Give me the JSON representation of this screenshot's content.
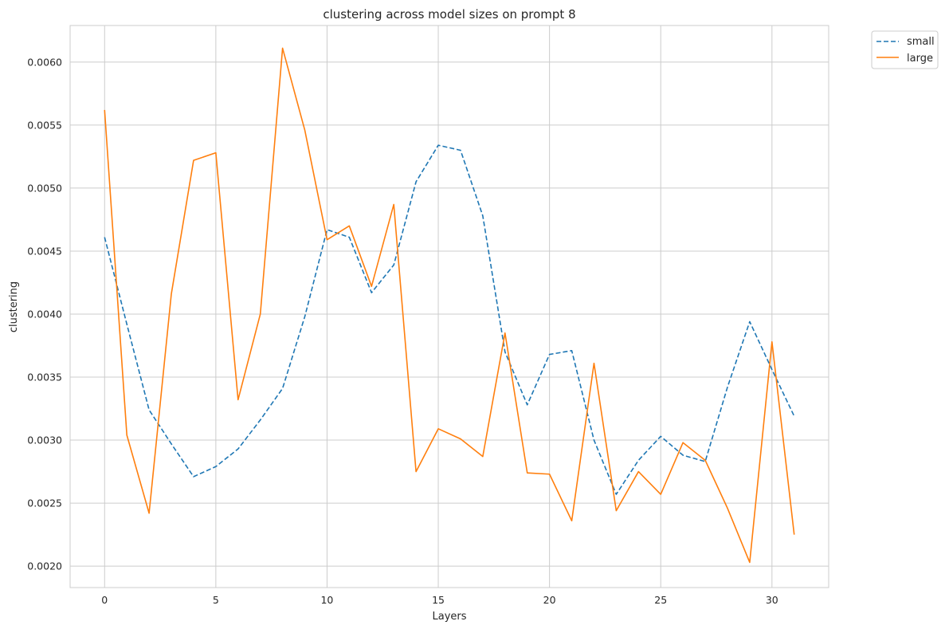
{
  "chart_data": {
    "type": "line",
    "title": "clustering across model sizes on prompt 8",
    "xlabel": "Layers",
    "ylabel": "clustering",
    "xlim": [
      -1.55,
      32.55
    ],
    "ylim": [
      0.00183,
      0.00629
    ],
    "x_ticks": [
      0,
      5,
      10,
      15,
      20,
      25,
      30
    ],
    "y_ticks": [
      0.002,
      0.0025,
      0.003,
      0.0035,
      0.004,
      0.0045,
      0.005,
      0.0055,
      0.006
    ],
    "x_tick_labels": [
      "0",
      "5",
      "10",
      "15",
      "20",
      "25",
      "30"
    ],
    "y_tick_labels": [
      "0.0020",
      "0.0025",
      "0.0030",
      "0.0035",
      "0.0040",
      "0.0045",
      "0.0050",
      "0.0055",
      "0.0060"
    ],
    "grid": true,
    "legend_position": "outside top-right",
    "x": [
      0,
      1,
      2,
      3,
      4,
      5,
      6,
      7,
      8,
      9,
      10,
      11,
      12,
      13,
      14,
      15,
      16,
      17,
      18,
      19,
      20,
      21,
      22,
      23,
      24,
      25,
      26,
      27,
      28,
      29,
      30,
      31
    ],
    "series": [
      {
        "name": "small",
        "color": "#1f77b4",
        "style": "dashed",
        "values": [
          0.00461,
          0.00392,
          0.00324,
          0.00297,
          0.00271,
          0.00279,
          0.00293,
          0.00316,
          0.00341,
          0.00398,
          0.00467,
          0.00461,
          0.00417,
          0.00439,
          0.00505,
          0.00534,
          0.0053,
          0.00478,
          0.0037,
          0.00328,
          0.00368,
          0.00371,
          0.003,
          0.00257,
          0.00284,
          0.00303,
          0.00288,
          0.00283,
          0.00342,
          0.00394,
          0.00356,
          0.00319
        ]
      },
      {
        "name": "large",
        "color": "#ff7f0e",
        "style": "solid",
        "values": [
          0.00562,
          0.00304,
          0.00242,
          0.00416,
          0.00522,
          0.00528,
          0.00332,
          0.004,
          0.00611,
          0.00546,
          0.00459,
          0.0047,
          0.00422,
          0.00487,
          0.00275,
          0.00309,
          0.00301,
          0.00287,
          0.00385,
          0.00274,
          0.00273,
          0.00236,
          0.00361,
          0.00244,
          0.00275,
          0.00257,
          0.00298,
          0.00284,
          0.00246,
          0.00203,
          0.00378,
          0.00225
        ]
      }
    ]
  }
}
